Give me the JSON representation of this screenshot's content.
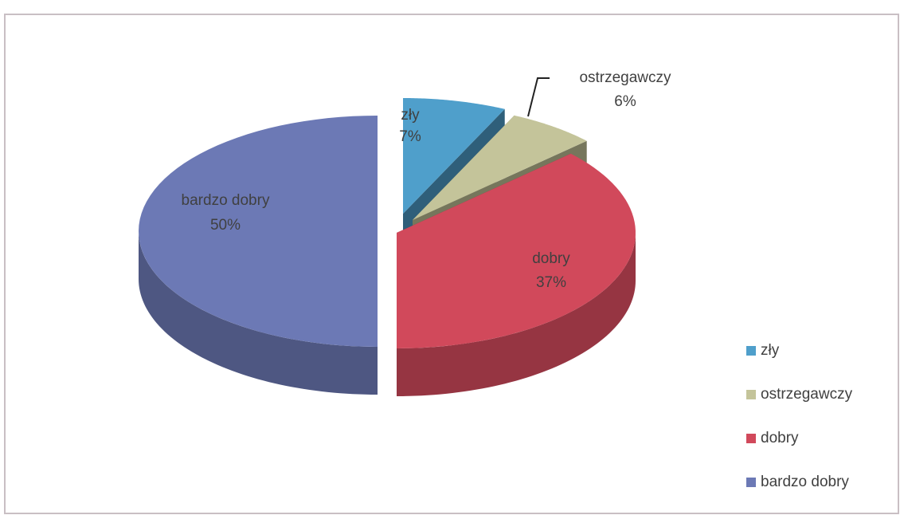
{
  "chart_data": {
    "type": "pie3d",
    "categories": [
      "zły",
      "ostrzegawczy",
      "dobry",
      "bardzo dobry"
    ],
    "values": [
      7,
      6,
      37,
      50
    ],
    "value_labels": [
      "7%",
      "6%",
      "37%",
      "50%"
    ],
    "colors": [
      "#4f9fcb",
      "#c4c49a",
      "#d1495b",
      "#6c79b5"
    ],
    "legend": "right"
  }
}
